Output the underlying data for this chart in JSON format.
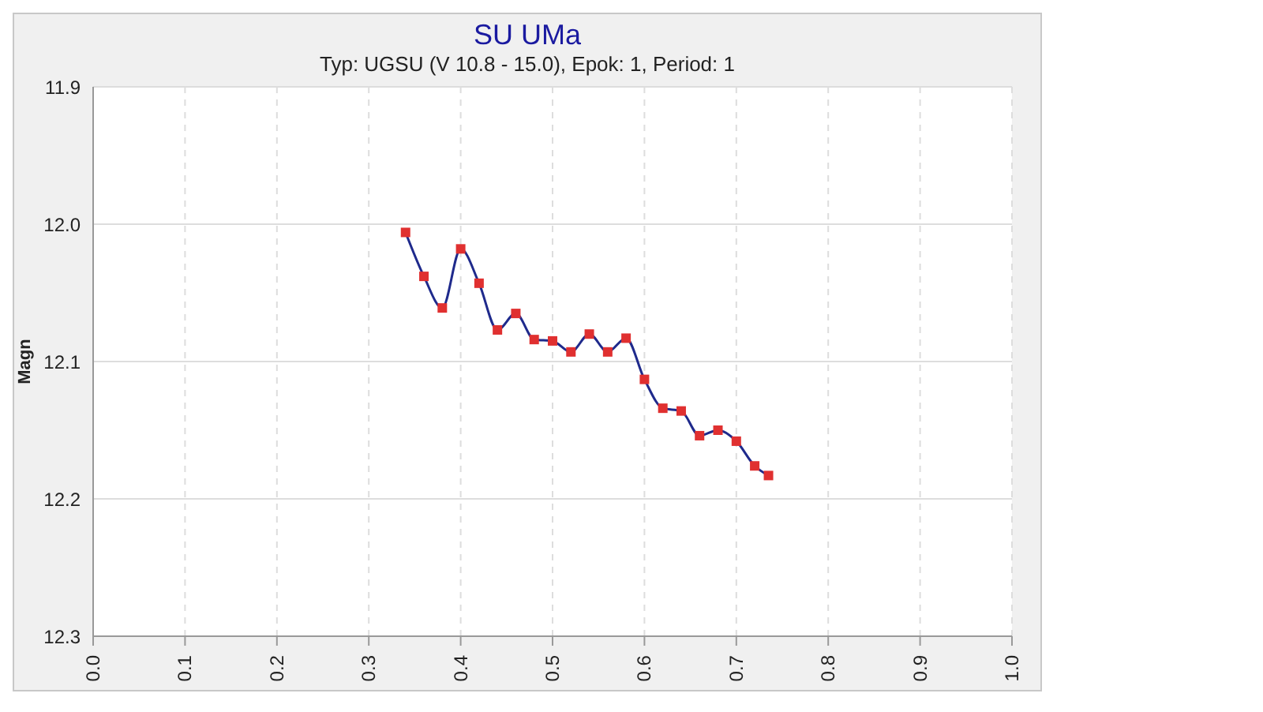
{
  "chart_data": {
    "type": "line",
    "title": "SU UMa",
    "subtitle": "Typ: UGSU (V 10.8 - 15.0), Epok: 1, Period: 1",
    "ylabel": "Magn",
    "x": [
      0.34,
      0.36,
      0.38,
      0.4,
      0.42,
      0.44,
      0.46,
      0.48,
      0.5,
      0.52,
      0.54,
      0.56,
      0.58,
      0.6,
      0.62,
      0.64,
      0.66,
      0.68,
      0.7,
      0.72,
      0.735
    ],
    "series": [
      {
        "color": "#1f2a8c",
        "colors": [
          "#e03030",
          "#e03030",
          "#e03030",
          "#e03030",
          "#e03030",
          "#e03030",
          "#e03030",
          "#e03030",
          "#e03030",
          "#e03030",
          "#e03030",
          "#e03030",
          "#e03030",
          "#e03030",
          "#e03030",
          "#e03030",
          "#e03030",
          "#e03030",
          "#e03030",
          "#e03030",
          "#e03030"
        ],
        "values": [
          12.006,
          12.038,
          12.061,
          12.018,
          12.043,
          12.077,
          12.065,
          12.084,
          12.085,
          12.093,
          12.08,
          12.093,
          12.083,
          12.113,
          12.134,
          12.136,
          12.154,
          12.15,
          12.158,
          12.176,
          12.183
        ]
      }
    ],
    "xlim": [
      0.0,
      1.0
    ],
    "xticks": [
      {
        "value": 0,
        "label": "0.0"
      },
      0.1,
      0.2,
      0.3,
      0.4,
      0.5,
      0.6,
      0.7,
      0.8,
      0.9,
      {
        "value": 1,
        "label": "1.0"
      }
    ],
    "ylim": [
      12.3,
      11.9
    ],
    "yticks": [
      11.9,
      {
        "value": 12,
        "label": "12.0"
      },
      12.1,
      12.2,
      12.3
    ],
    "grid": true,
    "marker": "square",
    "line_style": "solid"
  }
}
